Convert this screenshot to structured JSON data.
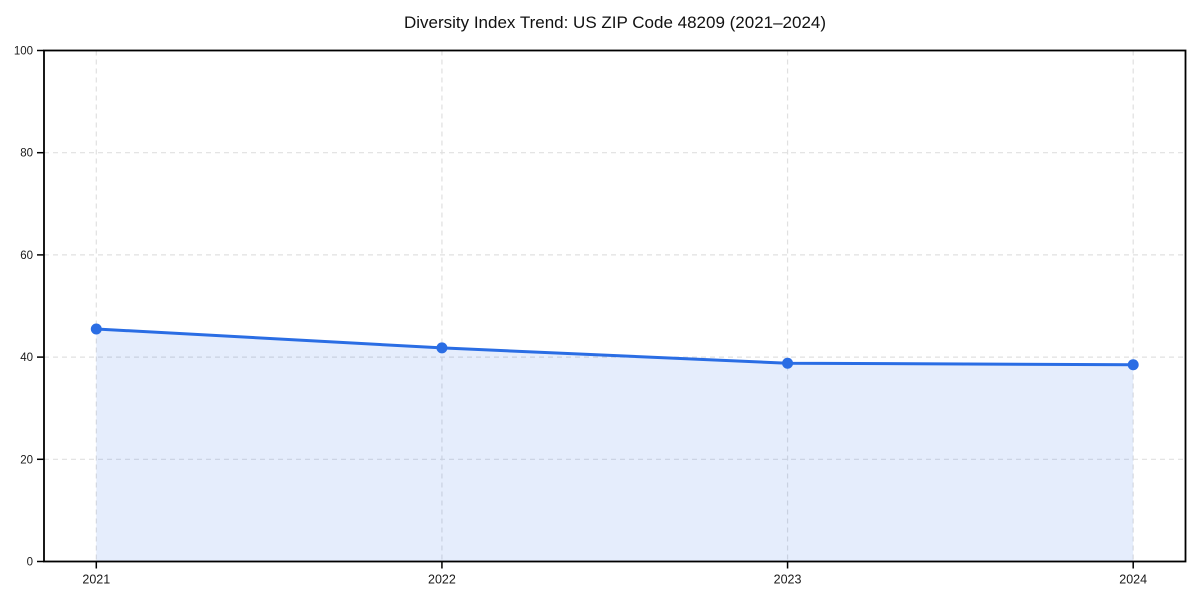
{
  "chart_data": {
    "type": "area",
    "title": "Diversity Index Trend: US ZIP Code 48209 (2021–2024)",
    "x": [
      "2021",
      "2022",
      "2023",
      "2024"
    ],
    "series": [
      {
        "name": "Diversity Index",
        "values": [
          45.5,
          41.8,
          38.8,
          38.5
        ]
      }
    ],
    "xlabel": "",
    "ylabel": "",
    "ylim": [
      0,
      100
    ],
    "yticks": [
      0,
      20,
      40,
      60,
      80,
      100
    ],
    "grid": "dashed, both axes",
    "legend_position": "none",
    "colors": {
      "line": "#2a6de4",
      "marker": "#2a6de4",
      "fill": "#2a6de4",
      "fill_opacity": 0.12,
      "grid": "#e0e0e0",
      "spine": "#000000",
      "tick_label": "#1a1a1a",
      "background": "#ffffff"
    }
  }
}
